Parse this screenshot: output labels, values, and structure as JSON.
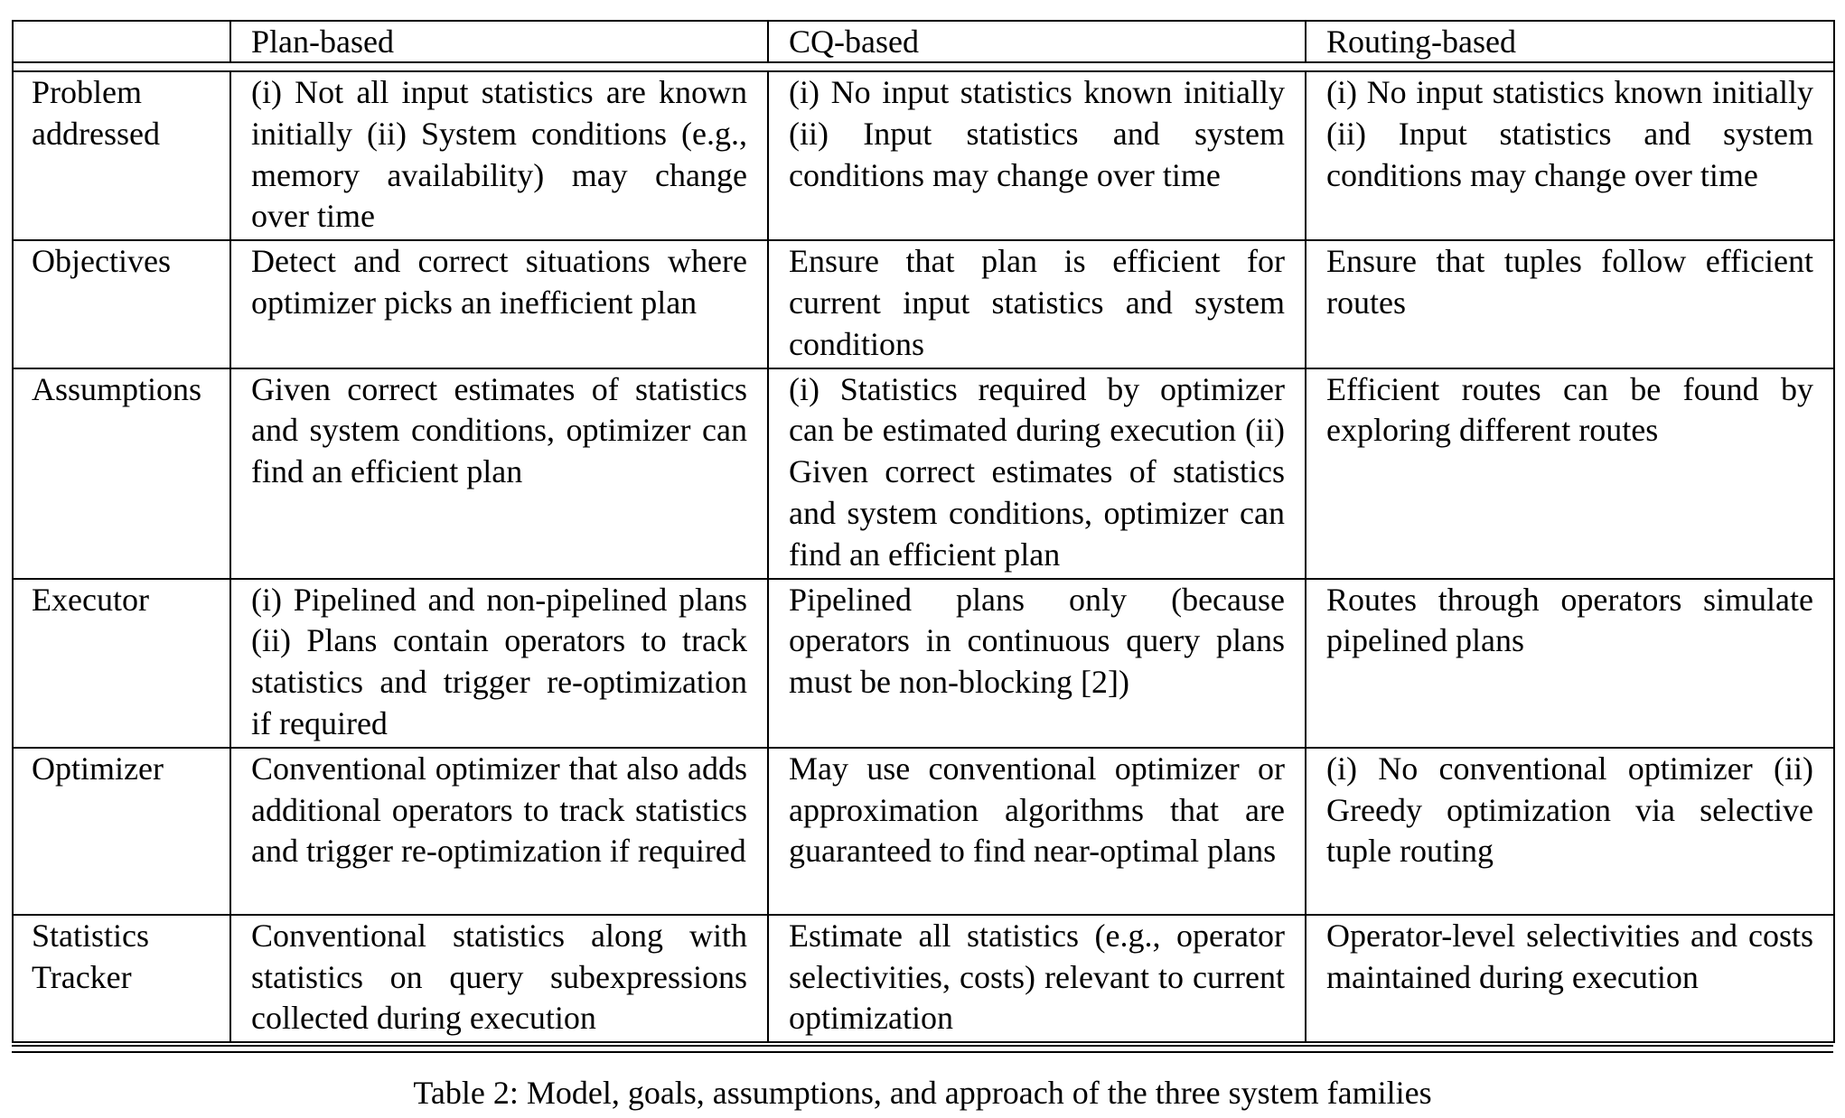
{
  "table": {
    "headers": [
      "",
      "Plan-based",
      "CQ-based",
      "Routing-based"
    ],
    "rows": [
      {
        "label": "Problem addressed",
        "cells": [
          "(i) Not all input statistics are known initially (ii) System conditions (e.g., memory availability) may change over time",
          "(i) No input statistics known initially (ii) Input statistics and system conditions may change over time",
          "(i) No input statistics known initially (ii) Input statistics and system conditions may change over time"
        ]
      },
      {
        "label": "Objectives",
        "cells": [
          "Detect and correct situations where optimizer picks an inefficient plan",
          "Ensure that plan is efficient for current input statistics and system conditions",
          "Ensure that tuples follow efficient routes"
        ]
      },
      {
        "label": "Assumptions",
        "cells": [
          "Given correct estimates of statistics and system conditions, optimizer can find an efficient plan",
          "(i) Statistics required by optimizer can be estimated during execution (ii) Given correct estimates of statistics and system conditions, optimizer can find an efficient plan",
          "Efficient routes can be found by exploring different routes"
        ]
      },
      {
        "label": "Executor",
        "cells": [
          "(i) Pipelined and non-pipelined plans (ii) Plans contain operators to track statistics and trigger re-optimization if required",
          "Pipelined plans only (because operators in continuous query plans must be non-blocking [2])",
          "Routes through operators simulate pipelined plans"
        ]
      },
      {
        "label": "Optimizer",
        "cells": [
          "Conventional optimizer that also adds additional operators to track statistics and trigger re-optimization if required",
          "May use conventional optimizer or approximation algorithms that are guaranteed to find near-optimal plans",
          "(i) No conventional optimizer (ii) Greedy optimization via selective tuple routing"
        ]
      },
      {
        "label": "Statistics Tracker",
        "cells": [
          "Conventional statistics along with statistics on query subexpressions collected during execution",
          "Estimate all statistics (e.g., operator selectivities, costs) relevant to current optimization",
          "Operator-level selectivities and costs maintained during execution"
        ]
      }
    ]
  },
  "caption": "Table 2: Model, goals, assumptions, and approach of the three system families"
}
